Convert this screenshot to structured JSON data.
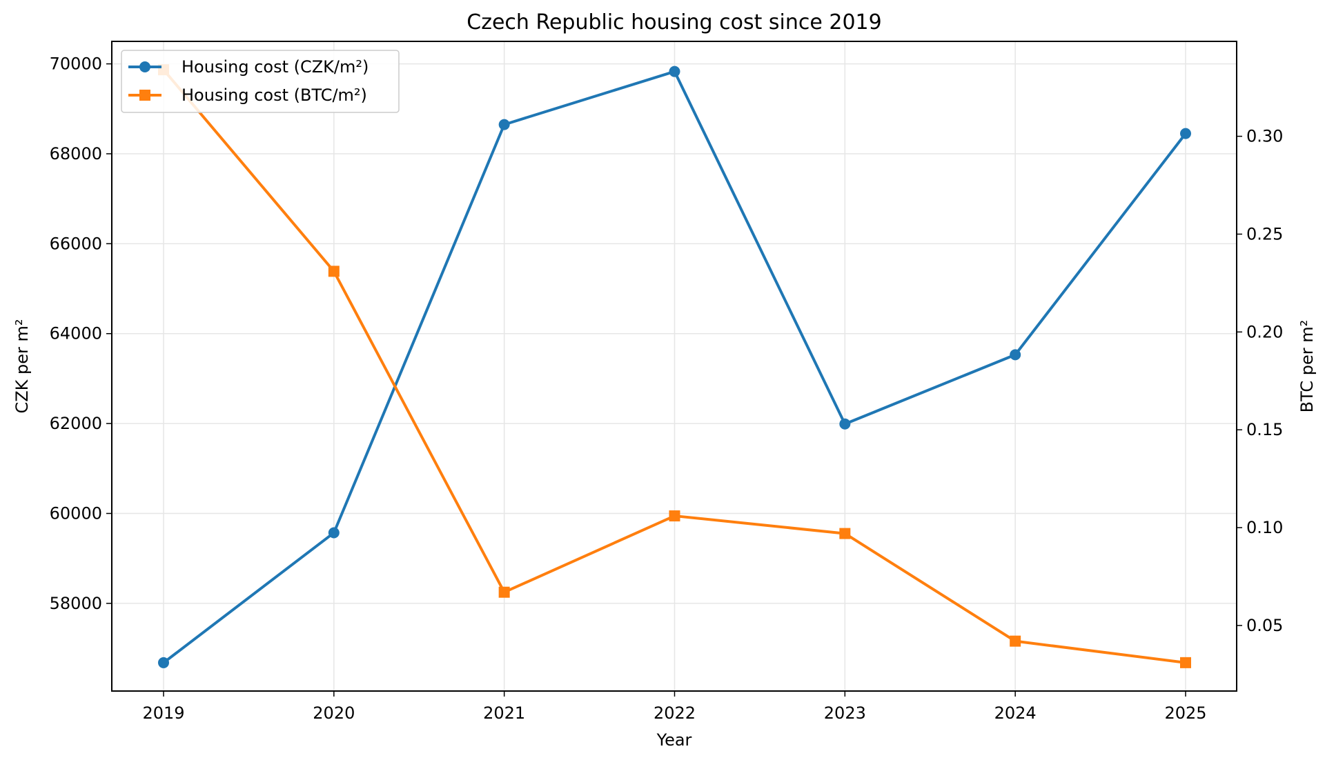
{
  "chart_data": {
    "type": "line",
    "title": "Czech Republic housing cost since 2019",
    "xlabel": "Year",
    "ylabel_left": "CZK per m²",
    "ylabel_right": "BTC per m²",
    "x": [
      "2019",
      "2020",
      "2021",
      "2022",
      "2023",
      "2024",
      "2025"
    ],
    "series": [
      {
        "name": "Housing cost (CZK/m²)",
        "axis": "left",
        "color": "#1f77b4",
        "marker": "circle",
        "values": [
          56680,
          59570,
          68650,
          69830,
          61990,
          63530,
          68450
        ]
      },
      {
        "name": "Housing cost (BTC/m²)",
        "axis": "right",
        "color": "#ff7f0e",
        "marker": "square",
        "values": [
          0.334,
          0.231,
          0.067,
          0.106,
          0.097,
          0.042,
          0.031
        ]
      }
    ],
    "ylim_left": [
      56050,
      70500
    ],
    "ylim_right": [
      0.0165,
      0.3485
    ],
    "yticks_left": [
      "58000",
      "60000",
      "62000",
      "64000",
      "66000",
      "68000",
      "70000"
    ],
    "yticks_right": [
      "0.05",
      "0.10",
      "0.15",
      "0.20",
      "0.25",
      "0.30"
    ],
    "grid": true,
    "legend": "top-left"
  }
}
